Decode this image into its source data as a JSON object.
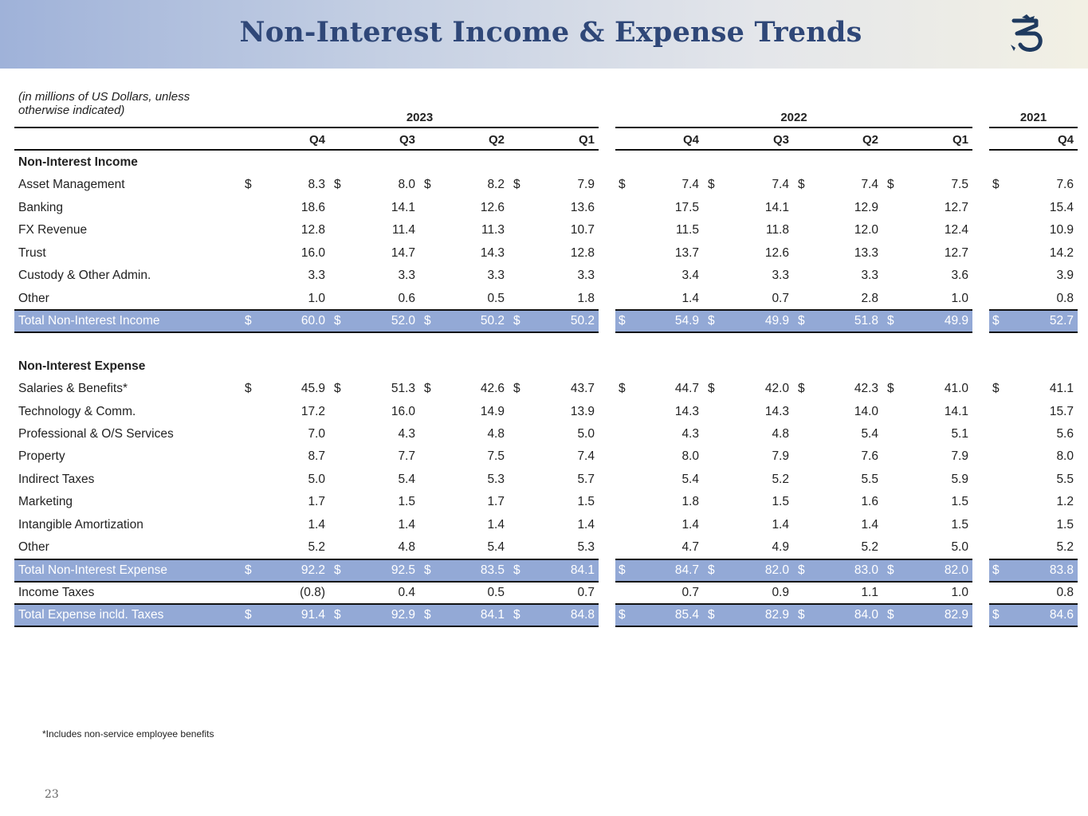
{
  "title": "Non-Interest Income & Expense Trends",
  "logo_name": "dragon-logo-icon",
  "units_note": "(in millions of US Dollars, unless otherwise indicated)",
  "year_groups": [
    {
      "year": "2023",
      "quarters": [
        "Q4",
        "Q3",
        "Q2",
        "Q1"
      ]
    },
    {
      "year": "2022",
      "quarters": [
        "Q4",
        "Q3",
        "Q2",
        "Q1"
      ]
    },
    {
      "year": "2021",
      "quarters": [
        "Q4"
      ]
    }
  ],
  "rows": [
    {
      "type": "section",
      "label": "Non-Interest Income"
    },
    {
      "type": "data",
      "label": "Asset Management",
      "dollar": true,
      "values": [
        "8.3",
        "8.0",
        "8.2",
        "7.9",
        "7.4",
        "7.4",
        "7.4",
        "7.5",
        "7.6"
      ]
    },
    {
      "type": "data",
      "label": "Banking",
      "dollar": false,
      "values": [
        "18.6",
        "14.1",
        "12.6",
        "13.6",
        "17.5",
        "14.1",
        "12.9",
        "12.7",
        "15.4"
      ]
    },
    {
      "type": "data",
      "label": "FX Revenue",
      "dollar": false,
      "values": [
        "12.8",
        "11.4",
        "11.3",
        "10.7",
        "11.5",
        "11.8",
        "12.0",
        "12.4",
        "10.9"
      ]
    },
    {
      "type": "data",
      "label": "Trust",
      "dollar": false,
      "values": [
        "16.0",
        "14.7",
        "14.3",
        "12.8",
        "13.7",
        "12.6",
        "13.3",
        "12.7",
        "14.2"
      ]
    },
    {
      "type": "data",
      "label": "Custody & Other Admin.",
      "dollar": false,
      "values": [
        "3.3",
        "3.3",
        "3.3",
        "3.3",
        "3.4",
        "3.3",
        "3.3",
        "3.6",
        "3.9"
      ]
    },
    {
      "type": "data",
      "label": "Other",
      "dollar": false,
      "values": [
        "1.0",
        "0.6",
        "0.5",
        "1.8",
        "1.4",
        "0.7",
        "2.8",
        "1.0",
        "0.8"
      ]
    },
    {
      "type": "total",
      "label": "Total Non-Interest Income",
      "dollar": true,
      "values": [
        "60.0",
        "52.0",
        "50.2",
        "50.2",
        "54.9",
        "49.9",
        "51.8",
        "49.9",
        "52.7"
      ]
    },
    {
      "type": "blank"
    },
    {
      "type": "section",
      "label": "Non-Interest Expense"
    },
    {
      "type": "data",
      "label": "Salaries & Benefits*",
      "dollar": true,
      "values": [
        "45.9",
        "51.3",
        "42.6",
        "43.7",
        "44.7",
        "42.0",
        "42.3",
        "41.0",
        "41.1"
      ]
    },
    {
      "type": "data",
      "label": "Technology & Comm.",
      "dollar": false,
      "values": [
        "17.2",
        "16.0",
        "14.9",
        "13.9",
        "14.3",
        "14.3",
        "14.0",
        "14.1",
        "15.7"
      ]
    },
    {
      "type": "data",
      "label": "Professional & O/S Services",
      "dollar": false,
      "values": [
        "7.0",
        "4.3",
        "4.8",
        "5.0",
        "4.3",
        "4.8",
        "5.4",
        "5.1",
        "5.6"
      ]
    },
    {
      "type": "data",
      "label": "Property",
      "dollar": false,
      "values": [
        "8.7",
        "7.7",
        "7.5",
        "7.4",
        "8.0",
        "7.9",
        "7.6",
        "7.9",
        "8.0"
      ]
    },
    {
      "type": "data",
      "label": "Indirect Taxes",
      "dollar": false,
      "values": [
        "5.0",
        "5.4",
        "5.3",
        "5.7",
        "5.4",
        "5.2",
        "5.5",
        "5.9",
        "5.5"
      ]
    },
    {
      "type": "data",
      "label": "Marketing",
      "dollar": false,
      "values": [
        "1.7",
        "1.5",
        "1.7",
        "1.5",
        "1.8",
        "1.5",
        "1.6",
        "1.5",
        "1.2"
      ]
    },
    {
      "type": "data",
      "label": "Intangible Amortization",
      "dollar": false,
      "values": [
        "1.4",
        "1.4",
        "1.4",
        "1.4",
        "1.4",
        "1.4",
        "1.4",
        "1.5",
        "1.5"
      ]
    },
    {
      "type": "data",
      "label": "Other",
      "dollar": false,
      "values": [
        "5.2",
        "4.8",
        "5.4",
        "5.3",
        "4.7",
        "4.9",
        "5.2",
        "5.0",
        "5.2"
      ]
    },
    {
      "type": "total",
      "label": "Total Non-Interest Expense",
      "dollar": true,
      "values": [
        "92.2",
        "92.5",
        "83.5",
        "84.1",
        "84.7",
        "82.0",
        "83.0",
        "82.0",
        "83.8"
      ]
    },
    {
      "type": "data",
      "label": "Income Taxes",
      "dollar": false,
      "values": [
        "(0.8)",
        "0.4",
        "0.5",
        "0.7",
        "0.7",
        "0.9",
        "1.1",
        "1.0",
        "0.8"
      ]
    },
    {
      "type": "total",
      "label": "Total Expense incld. Taxes",
      "dollar": true,
      "values": [
        "91.4",
        "92.9",
        "84.1",
        "84.8",
        "85.4",
        "82.9",
        "84.0",
        "82.9",
        "84.6"
      ]
    }
  ],
  "currency_symbol": "$",
  "footnote": "*Includes non-service employee benefits",
  "page_number": "23"
}
